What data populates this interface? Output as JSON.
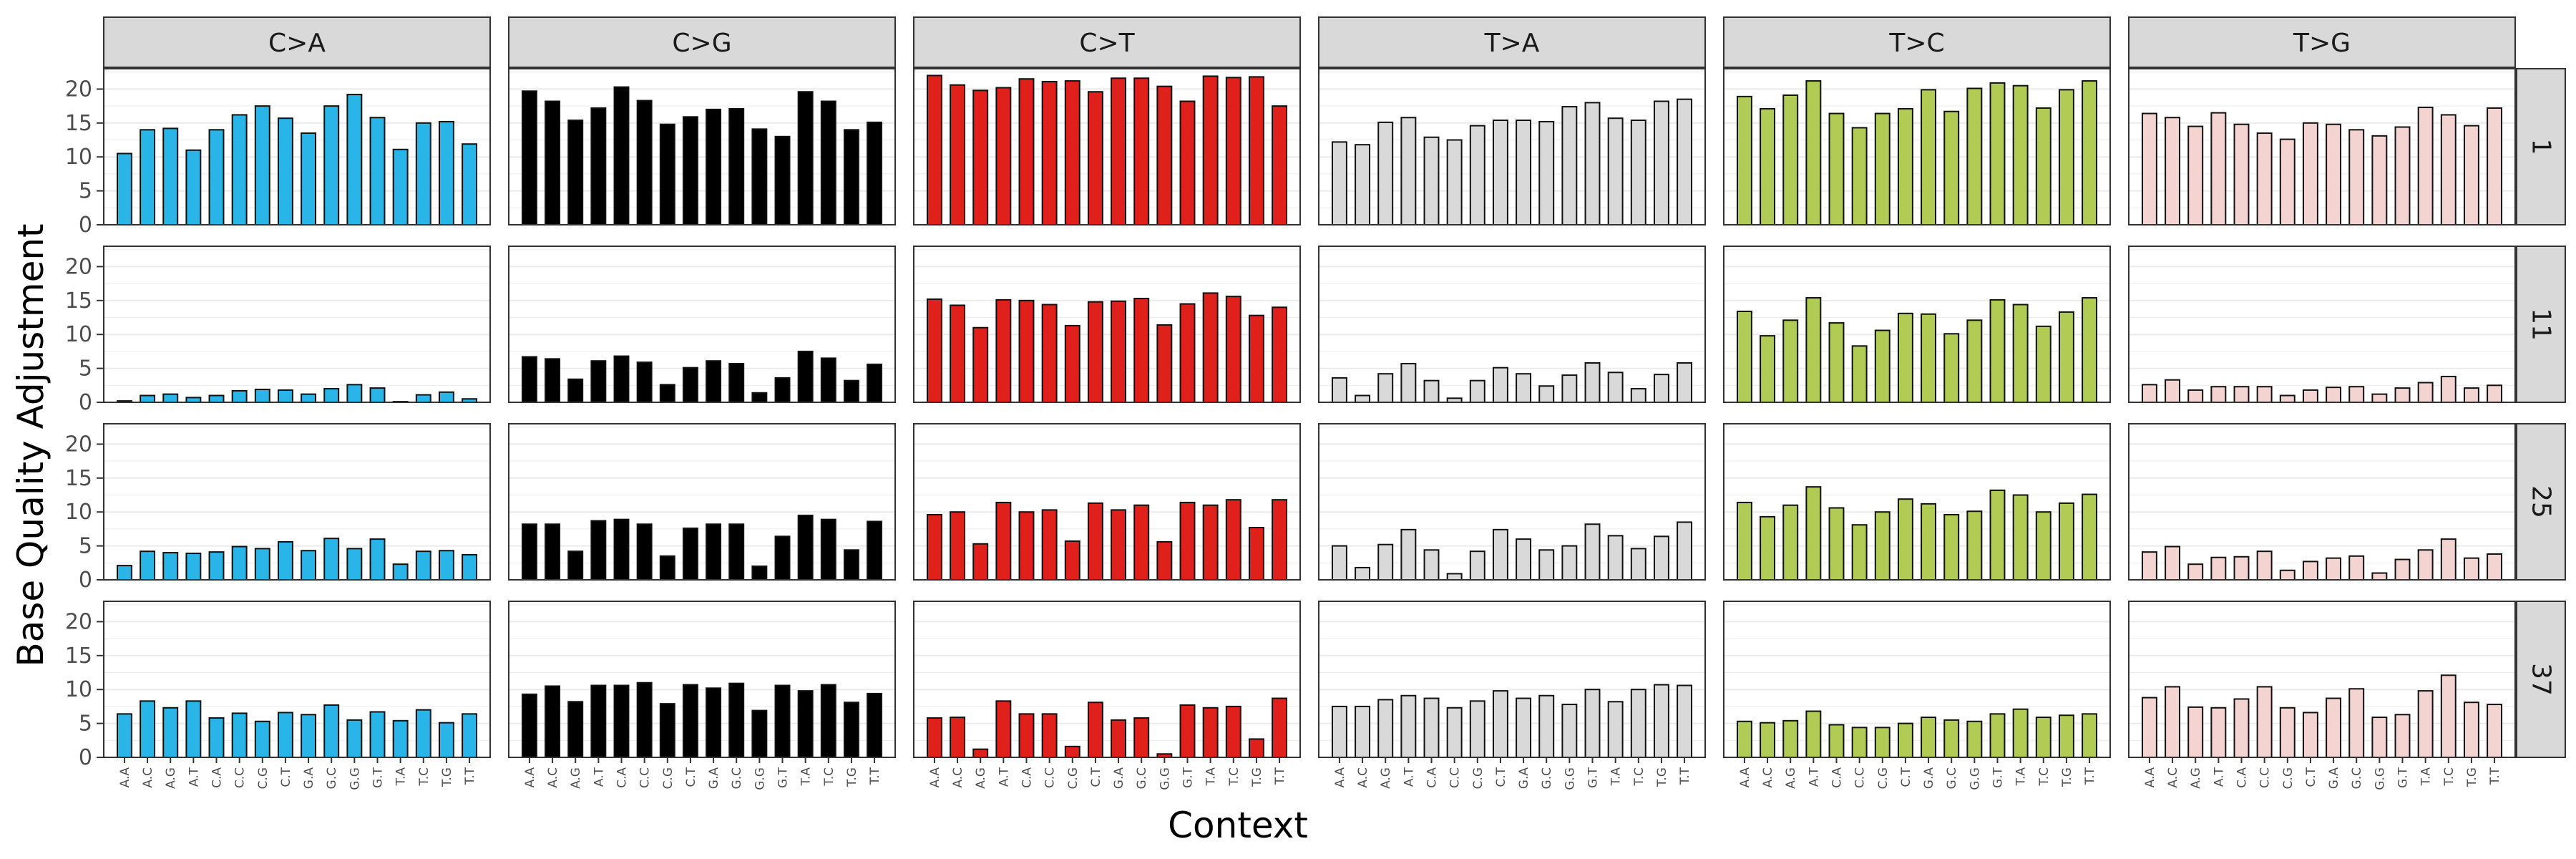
{
  "chart_data": {
    "type": "bar",
    "xlabel": "Context",
    "ylabel": "Base Quality Adjustment",
    "ylim": [
      0,
      23
    ],
    "yticks": [
      0,
      5,
      10,
      15,
      20
    ],
    "grid": true,
    "categories": [
      "A.A",
      "A.C",
      "A.G",
      "A.T",
      "C.A",
      "C.C",
      "C.G",
      "C.T",
      "G.A",
      "G.C",
      "G.G",
      "G.T",
      "T.A",
      "T.C",
      "T.G",
      "T.T"
    ],
    "columns": [
      "C>A",
      "C>G",
      "C>T",
      "T>A",
      "T>C",
      "T>G"
    ],
    "rows": [
      "1",
      "11",
      "25",
      "37"
    ],
    "colors": {
      "C>A": "#29b5e8",
      "C>G": "#000000",
      "C>T": "#e0201b",
      "T>A": "#d9d9d9",
      "T>C": "#b0cc55",
      "T>G": "#f4d4d1"
    },
    "panels": {
      "1": {
        "C>A": [
          10.5,
          14,
          14.2,
          11,
          14,
          16.2,
          17.5,
          15.7,
          13.5,
          17.5,
          19.2,
          15.8,
          11.1,
          15,
          15.2,
          11.9
        ],
        "C>G": [
          19.7,
          18.2,
          15.4,
          17.2,
          20.3,
          18.3,
          14.8,
          15.9,
          17,
          17.1,
          14.1,
          13,
          19.6,
          18.2,
          14,
          15.1
        ],
        "C>T": [
          22,
          20.6,
          19.8,
          20.2,
          21.5,
          21.1,
          21.2,
          19.6,
          21.6,
          21.6,
          20.4,
          18.2,
          21.9,
          21.7,
          21.8,
          17.5
        ],
        "T>A": [
          12.2,
          11.8,
          15.1,
          15.8,
          12.9,
          12.5,
          14.6,
          15.4,
          15.4,
          15.2,
          17.4,
          18,
          15.7,
          15.4,
          18.2,
          18.5
        ],
        "T>C": [
          18.9,
          17.1,
          19.1,
          21.2,
          16.4,
          14.3,
          16.4,
          17.1,
          19.9,
          16.7,
          20.1,
          20.9,
          20.5,
          17.2,
          19.9,
          21.2
        ],
        "T>G": [
          16.4,
          15.8,
          14.5,
          16.5,
          14.8,
          13.5,
          12.6,
          15,
          14.8,
          14,
          13.1,
          14.4,
          17.3,
          16.2,
          14.6,
          17.2
        ]
      },
      "11": {
        "C>A": [
          0.2,
          1,
          1.2,
          0.7,
          1,
          1.7,
          1.9,
          1.8,
          1.2,
          2,
          2.6,
          2.1,
          0.1,
          1.1,
          1.5,
          0.5
        ],
        "C>G": [
          6.7,
          6.4,
          3.4,
          6.1,
          6.8,
          5.9,
          2.6,
          5.1,
          6.1,
          5.7,
          1.4,
          3.6,
          7.5,
          6.5,
          3.2,
          5.6
        ],
        "C>T": [
          15.2,
          14.3,
          11,
          15.1,
          15,
          14.4,
          11.3,
          14.8,
          14.9,
          15.3,
          11.4,
          14.5,
          16.1,
          15.6,
          12.8,
          14
        ],
        "T>A": [
          3.6,
          1,
          4.2,
          5.7,
          3.2,
          0.6,
          3.2,
          5.1,
          4.2,
          2.4,
          4,
          5.8,
          4.4,
          2,
          4.1,
          5.8
        ],
        "T>C": [
          13.4,
          9.8,
          12.1,
          15.4,
          11.7,
          8.3,
          10.6,
          13.1,
          13,
          10.1,
          12.1,
          15.1,
          14.4,
          11.2,
          13.3,
          15.4
        ],
        "T>G": [
          2.6,
          3.3,
          1.8,
          2.3,
          2.3,
          2.3,
          1,
          1.8,
          2.2,
          2.3,
          1.2,
          2.1,
          2.9,
          3.8,
          2.1,
          2.5
        ]
      },
      "25": {
        "C>A": [
          2.1,
          4.2,
          4,
          3.9,
          4.1,
          4.9,
          4.6,
          5.6,
          4.3,
          6.1,
          4.6,
          6,
          2.3,
          4.2,
          4.3,
          3.7
        ],
        "C>G": [
          8.2,
          8.2,
          4.2,
          8.7,
          8.9,
          8.2,
          3.5,
          7.6,
          8.2,
          8.2,
          2,
          6.4,
          9.5,
          8.9,
          4.4,
          8.6
        ],
        "C>T": [
          9.6,
          10,
          5.3,
          11.4,
          10,
          10.3,
          5.7,
          11.3,
          10.3,
          11,
          5.6,
          11.4,
          11,
          11.8,
          7.7,
          11.8
        ],
        "T>A": [
          5,
          1.8,
          5.2,
          7.4,
          4.4,
          0.9,
          4.2,
          7.4,
          6,
          4.4,
          5,
          8.2,
          6.5,
          4.6,
          6.4,
          8.5
        ],
        "T>C": [
          11.4,
          9.3,
          11,
          13.7,
          10.6,
          8.1,
          10,
          11.9,
          11.2,
          9.6,
          10.1,
          13.2,
          12.5,
          10,
          11.3,
          12.6
        ],
        "T>G": [
          4.1,
          4.9,
          2.3,
          3.3,
          3.4,
          4.2,
          1.4,
          2.7,
          3.2,
          3.5,
          1,
          3,
          4.4,
          6,
          3.2,
          3.8
        ]
      },
      "37": {
        "C>A": [
          6.4,
          8.3,
          7.3,
          8.3,
          5.8,
          6.5,
          5.3,
          6.6,
          6.3,
          7.7,
          5.5,
          6.7,
          5.4,
          7,
          5.1,
          6.4
        ],
        "C>G": [
          9.3,
          10.5,
          8.2,
          10.6,
          10.6,
          11,
          7.9,
          10.7,
          10.2,
          10.9,
          6.9,
          10.6,
          9.8,
          10.7,
          8.1,
          9.4
        ],
        "C>T": [
          5.8,
          5.9,
          1.2,
          8.3,
          6.4,
          6.4,
          1.6,
          8.1,
          5.5,
          5.8,
          0.5,
          7.7,
          7.3,
          7.5,
          2.7,
          8.7
        ],
        "T>A": [
          7.5,
          7.5,
          8.5,
          9.1,
          8.7,
          7.3,
          8.3,
          9.8,
          8.7,
          9.1,
          7.8,
          10,
          8.2,
          10,
          10.7,
          10.6
        ],
        "T>C": [
          5.3,
          5.1,
          5.4,
          6.8,
          4.8,
          4.4,
          4.4,
          5,
          5.9,
          5.5,
          5.3,
          6.4,
          7.1,
          5.9,
          6.2,
          6.4
        ],
        "T>G": [
          8.8,
          10.4,
          7.4,
          7.3,
          8.6,
          10.4,
          7.3,
          6.6,
          8.7,
          10.1,
          5.9,
          6.3,
          9.8,
          12.1,
          8.1,
          7.8
        ]
      }
    }
  }
}
